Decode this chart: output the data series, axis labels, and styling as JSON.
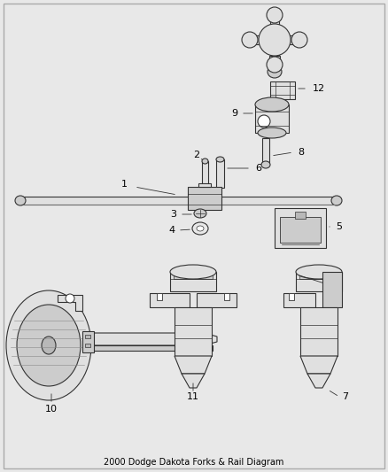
{
  "title": "2000 Dodge Dakota Forks & Rail Diagram",
  "bg": "#e8e8e8",
  "white": "#ffffff",
  "lc": "#333333",
  "lc2": "#555555",
  "lw": 0.8,
  "label_fs": 8,
  "title_text": "2000 Dodge Dakota Forks & Rail Diagram",
  "title_fs": 7
}
